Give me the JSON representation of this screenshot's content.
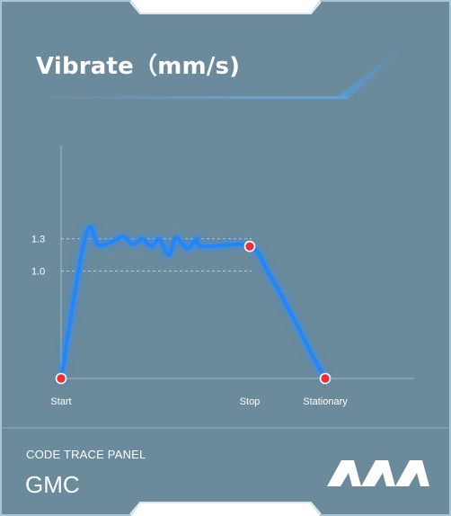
{
  "panel": {
    "title": "Vibrate（mm/s)",
    "footer_label": "CODE TRACE PANEL",
    "footer_value": "GMC",
    "logo_text": "AAA"
  },
  "colors": {
    "panel_bg": "#6b8a9b",
    "line": "#2a8dff",
    "marker": "#e8323a",
    "frame": "#a8c3d2"
  },
  "chart_data": {
    "type": "line",
    "y_tick_labels": [
      "1.3",
      "1.0"
    ],
    "y_ticks": [
      1.3,
      1.0
    ],
    "x_labels": [
      "Start",
      "Stop",
      "Stationary"
    ],
    "ylim": [
      0,
      3.1
    ],
    "series": [
      {
        "values": [
          [
            0.0,
            0.0
          ],
          [
            0.13,
            1.33
          ],
          [
            0.2,
            1.24
          ],
          [
            0.28,
            1.28
          ],
          [
            0.33,
            1.32
          ],
          [
            0.38,
            1.25
          ],
          [
            0.43,
            1.3
          ],
          [
            0.48,
            1.23
          ],
          [
            0.52,
            1.3
          ],
          [
            0.57,
            1.15
          ],
          [
            0.61,
            1.31
          ],
          [
            0.67,
            1.21
          ],
          [
            0.72,
            1.3
          ],
          [
            0.75,
            1.23
          ],
          [
            1.0,
            1.23
          ],
          [
            1.1,
            0.98
          ],
          [
            1.22,
            0.6
          ],
          [
            1.33,
            0.22
          ],
          [
            1.4,
            0.0
          ]
        ]
      }
    ],
    "markers": [
      {
        "label": "Start",
        "x": 0.0,
        "y": 0.0
      },
      {
        "label": "Stop",
        "x": 1.0,
        "y": 1.23
      },
      {
        "label": "Stationary",
        "x": 1.4,
        "y": 0.0
      }
    ]
  }
}
